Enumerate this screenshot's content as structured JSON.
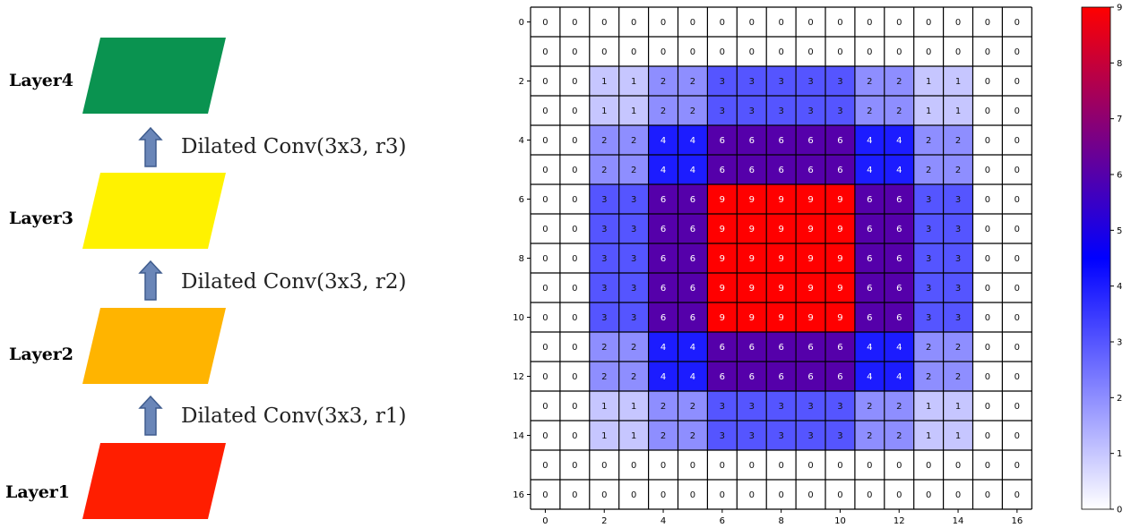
{
  "left_diagram": {
    "layers": [
      {
        "label": "Layer4",
        "color": "#0a9350"
      },
      {
        "label": "Layer3",
        "color": "#fff200"
      },
      {
        "label": "Layer2",
        "color": "#ffb400"
      },
      {
        "label": "Layer1",
        "color": "#ff1e00"
      }
    ],
    "operations": [
      {
        "label": "Dilated Conv(3x3, r3)"
      },
      {
        "label": "Dilated Conv(3x3, r2)"
      },
      {
        "label": "Dilated Conv(3x3, r1)"
      }
    ],
    "arrow_color": "#6a86b8"
  },
  "chart_data": {
    "type": "heatmap",
    "rows": 17,
    "cols": 17,
    "row_ticks": [
      0,
      2,
      4,
      6,
      8,
      10,
      12,
      14,
      16
    ],
    "col_ticks": [
      0,
      2,
      4,
      6,
      8,
      10,
      12,
      14,
      16
    ],
    "values": [
      [
        0,
        0,
        0,
        0,
        0,
        0,
        0,
        0,
        0,
        0,
        0,
        0,
        0,
        0,
        0,
        0,
        0
      ],
      [
        0,
        0,
        0,
        0,
        0,
        0,
        0,
        0,
        0,
        0,
        0,
        0,
        0,
        0,
        0,
        0,
        0
      ],
      [
        0,
        0,
        1,
        1,
        2,
        2,
        3,
        3,
        3,
        3,
        3,
        2,
        2,
        1,
        1,
        0,
        0
      ],
      [
        0,
        0,
        1,
        1,
        2,
        2,
        3,
        3,
        3,
        3,
        3,
        2,
        2,
        1,
        1,
        0,
        0
      ],
      [
        0,
        0,
        2,
        2,
        4,
        4,
        6,
        6,
        6,
        6,
        6,
        4,
        4,
        2,
        2,
        0,
        0
      ],
      [
        0,
        0,
        2,
        2,
        4,
        4,
        6,
        6,
        6,
        6,
        6,
        4,
        4,
        2,
        2,
        0,
        0
      ],
      [
        0,
        0,
        3,
        3,
        6,
        6,
        9,
        9,
        9,
        9,
        9,
        6,
        6,
        3,
        3,
        0,
        0
      ],
      [
        0,
        0,
        3,
        3,
        6,
        6,
        9,
        9,
        9,
        9,
        9,
        6,
        6,
        3,
        3,
        0,
        0
      ],
      [
        0,
        0,
        3,
        3,
        6,
        6,
        9,
        9,
        9,
        9,
        9,
        6,
        6,
        3,
        3,
        0,
        0
      ],
      [
        0,
        0,
        3,
        3,
        6,
        6,
        9,
        9,
        9,
        9,
        9,
        6,
        6,
        3,
        3,
        0,
        0
      ],
      [
        0,
        0,
        3,
        3,
        6,
        6,
        9,
        9,
        9,
        9,
        9,
        6,
        6,
        3,
        3,
        0,
        0
      ],
      [
        0,
        0,
        2,
        2,
        4,
        4,
        6,
        6,
        6,
        6,
        6,
        4,
        4,
        2,
        2,
        0,
        0
      ],
      [
        0,
        0,
        2,
        2,
        4,
        4,
        6,
        6,
        6,
        6,
        6,
        4,
        4,
        2,
        2,
        0,
        0
      ],
      [
        0,
        0,
        1,
        1,
        2,
        2,
        3,
        3,
        3,
        3,
        3,
        2,
        2,
        1,
        1,
        0,
        0
      ],
      [
        0,
        0,
        1,
        1,
        2,
        2,
        3,
        3,
        3,
        3,
        3,
        2,
        2,
        1,
        1,
        0,
        0
      ],
      [
        0,
        0,
        0,
        0,
        0,
        0,
        0,
        0,
        0,
        0,
        0,
        0,
        0,
        0,
        0,
        0,
        0
      ],
      [
        0,
        0,
        0,
        0,
        0,
        0,
        0,
        0,
        0,
        0,
        0,
        0,
        0,
        0,
        0,
        0,
        0
      ]
    ],
    "colormap": [
      "#ffffff",
      "#0000ff",
      "#ff0000"
    ],
    "vmin": 0,
    "vmax": 9,
    "colorbar_ticks": [
      0,
      1,
      2,
      3,
      4,
      5,
      6,
      7,
      8,
      9
    ]
  }
}
